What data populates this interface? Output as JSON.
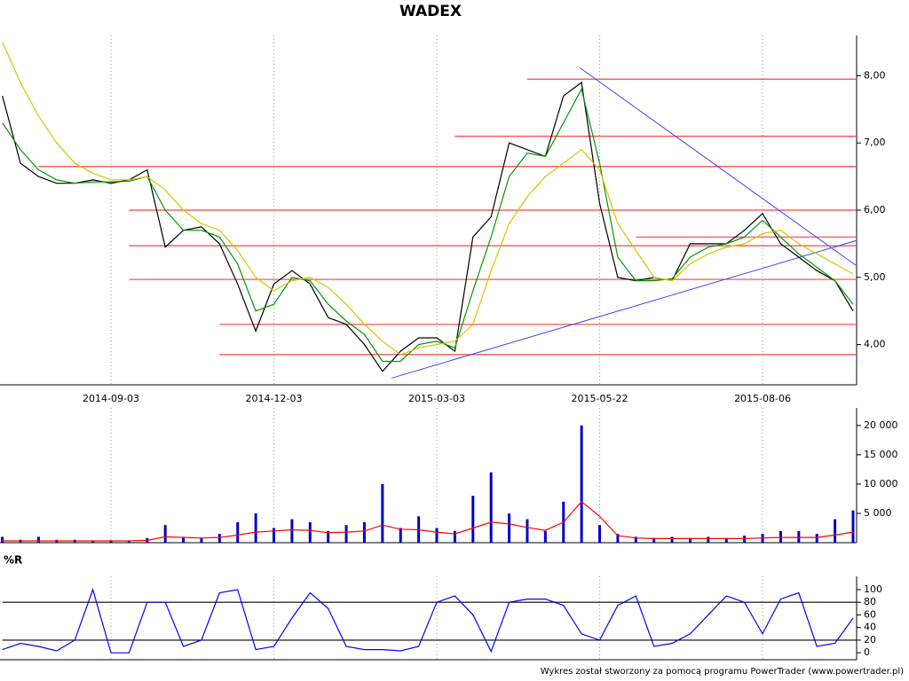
{
  "chart_data": [
    {
      "type": "line",
      "title": "WADEX",
      "categories": [
        null,
        null,
        null,
        null,
        null,
        null,
        "2014-09-03",
        null,
        null,
        null,
        null,
        null,
        null,
        null,
        null,
        "2014-12-03",
        null,
        null,
        null,
        null,
        null,
        null,
        null,
        null,
        "2015-03-03",
        null,
        null,
        null,
        null,
        null,
        null,
        null,
        null,
        "2015-05-22",
        null,
        null,
        null,
        null,
        null,
        null,
        null,
        null,
        "2015-08-06",
        null,
        null,
        null,
        null,
        null
      ],
      "series": [
        {
          "color": "#000000",
          "values": [
            7.7,
            6.7,
            6.5,
            6.4,
            6.4,
            6.45,
            6.4,
            6.45,
            6.6,
            5.45,
            5.7,
            5.75,
            5.5,
            4.9,
            4.2,
            4.9,
            5.1,
            4.9,
            4.4,
            4.3,
            4.0,
            3.6,
            3.9,
            4.1,
            4.1,
            3.9,
            5.6,
            5.9,
            7.0,
            6.9,
            6.8,
            7.7,
            7.9,
            6.1,
            5.0,
            4.95,
            5.0,
            4.95,
            5.5,
            5.5,
            5.5,
            5.7,
            5.95,
            5.5,
            5.3,
            5.1,
            4.95,
            4.5
          ]
        },
        {
          "color": "#009900",
          "values": [
            7.3,
            6.9,
            6.6,
            6.45,
            6.4,
            6.42,
            6.42,
            6.43,
            6.5,
            6.0,
            5.7,
            5.7,
            5.6,
            5.2,
            4.5,
            4.6,
            5.0,
            4.95,
            4.6,
            4.35,
            4.15,
            3.75,
            3.75,
            4.0,
            4.05,
            3.95,
            4.8,
            5.6,
            6.5,
            6.85,
            6.8,
            7.3,
            7.8,
            6.7,
            5.3,
            4.95,
            4.95,
            4.98,
            5.3,
            5.45,
            5.5,
            5.6,
            5.85,
            5.6,
            5.35,
            5.15,
            4.95,
            4.6
          ]
        },
        {
          "color": "#e0c000",
          "values": [
            8.5,
            7.9,
            7.4,
            7.0,
            6.7,
            6.55,
            6.45,
            6.45,
            6.5,
            6.3,
            6.0,
            5.8,
            5.7,
            5.4,
            5.0,
            4.8,
            4.95,
            5.0,
            4.85,
            4.6,
            4.3,
            4.05,
            3.85,
            3.95,
            4.0,
            4.05,
            4.3,
            5.1,
            5.8,
            6.2,
            6.5,
            6.7,
            6.9,
            6.6,
            5.8,
            5.4,
            5.0,
            4.95,
            5.2,
            5.35,
            5.45,
            5.5,
            5.65,
            5.7,
            5.5,
            5.35,
            5.2,
            5.05
          ]
        }
      ],
      "levels": [
        {
          "value": 7.95,
          "from": 29
        },
        {
          "value": 7.1,
          "from": 25
        },
        {
          "value": 6.65,
          "from": 2
        },
        {
          "value": 6.0,
          "from": 7
        },
        {
          "value": 5.6,
          "from": 35
        },
        {
          "value": 5.47,
          "from": 7
        },
        {
          "value": 4.97,
          "from": 7
        },
        {
          "value": 4.3,
          "from": 12
        },
        {
          "value": 3.85,
          "from": 12
        }
      ],
      "level_color": "#ff4040",
      "trendlines": [
        {
          "x": [
            21.5,
            47.2
          ],
          "y": [
            3.5,
            5.55
          ]
        },
        {
          "x": [
            31.9,
            47.2
          ],
          "y": [
            8.12,
            5.17
          ]
        }
      ],
      "trend_color": "#4040ff",
      "ylim": [
        3.4,
        8.6
      ],
      "yticks": [
        {
          "value": 4,
          "label": "4,00"
        },
        {
          "value": 5,
          "label": "5,00"
        },
        {
          "value": 6,
          "label": "6,00"
        },
        {
          "value": 7,
          "label": "7,00"
        },
        {
          "value": 8,
          "label": "8,00"
        }
      ]
    },
    {
      "type": "bar",
      "series": [
        {
          "type": "bar",
          "color": "#0000cc",
          "values": [
            1000,
            500,
            1000,
            500,
            500,
            300,
            400,
            300,
            800,
            3000,
            1000,
            800,
            1500,
            3500,
            5000,
            2500,
            4000,
            3500,
            2000,
            3000,
            3500,
            10000,
            2500,
            4500,
            2500,
            2000,
            8000,
            12000,
            5000,
            4000,
            2000,
            7000,
            20000,
            3000,
            1500,
            1000,
            800,
            1000,
            800,
            1000,
            800,
            1200,
            1500,
            2000,
            2000,
            1500,
            4000,
            5500
          ]
        },
        {
          "type": "line",
          "color": "#ff0000",
          "values": [
            300,
            300,
            300,
            300,
            300,
            300,
            300,
            300,
            400,
            1000,
            900,
            800,
            900,
            1300,
            1800,
            2000,
            2200,
            2100,
            1700,
            1800,
            2000,
            3000,
            2300,
            2200,
            1800,
            1500,
            2500,
            3500,
            3200,
            2600,
            2100,
            3500,
            7000,
            4500,
            1200,
            800,
            700,
            700,
            700,
            700,
            700,
            700,
            800,
            900,
            900,
            900,
            1300,
            1800
          ]
        }
      ],
      "ylim": [
        0,
        23000
      ],
      "yticks": [
        {
          "value": 5000,
          "label": "5 000"
        },
        {
          "value": 10000,
          "label": "10 000"
        },
        {
          "value": 15000,
          "label": "15 000"
        },
        {
          "value": 20000,
          "label": "20 000"
        }
      ]
    },
    {
      "type": "line",
      "title": "%R",
      "series": [
        {
          "color": "#0000ff",
          "values": [
            5,
            15,
            10,
            3,
            20,
            100,
            0,
            0,
            80,
            80,
            10,
            20,
            95,
            100,
            5,
            10,
            55,
            95,
            70,
            10,
            5,
            5,
            3,
            10,
            80,
            90,
            60,
            2,
            80,
            85,
            85,
            75,
            30,
            20,
            75,
            90,
            10,
            15,
            30,
            60,
            90,
            80,
            30,
            85,
            95,
            10,
            15,
            55
          ]
        }
      ],
      "levels": [
        {
          "value": 20,
          "from": 0
        },
        {
          "value": 80,
          "from": 0
        }
      ],
      "level_color": "#000000",
      "ylim": [
        -11,
        121
      ],
      "yticks": [
        0,
        20,
        40,
        60,
        80,
        100
      ]
    }
  ],
  "footer": "Wykres został stworzony za pomocą programu PowerTrader (www.powertrader.pl)"
}
